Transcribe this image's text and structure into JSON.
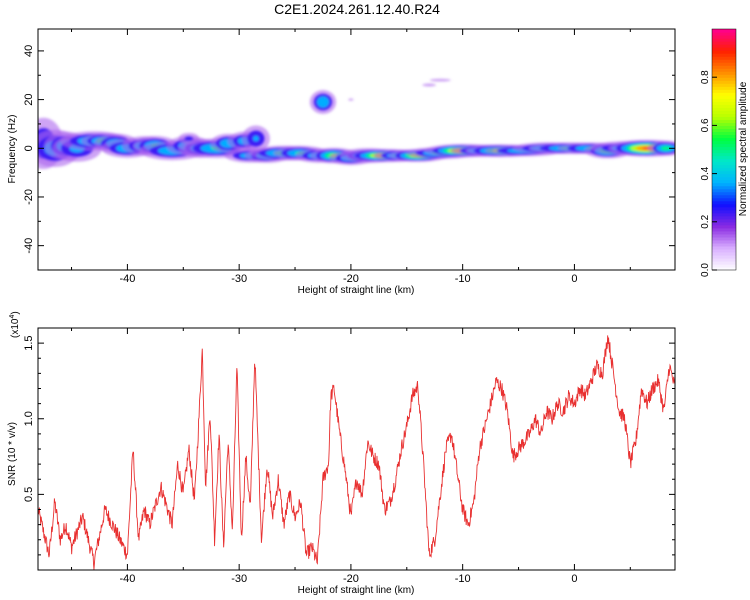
{
  "figure": {
    "title": "C2E1.2024.261.12.40.R24"
  },
  "chart_data": [
    {
      "type": "heatmap",
      "xlabel": "Height of straight line (km)",
      "ylabel": "Frequency (Hz)",
      "xlim": [
        -48,
        9
      ],
      "ylim": [
        -50,
        49
      ],
      "x_ticks": [
        -40,
        -30,
        -20,
        -10,
        0
      ],
      "y_ticks": [
        -40,
        -20,
        0,
        20,
        40
      ],
      "colorbar": {
        "label": "Normalized spectral amplitude",
        "range": [
          0.0,
          1.0
        ],
        "ticks": [
          "0.0",
          "0.2",
          "0.4",
          "0.6",
          "0.8"
        ],
        "colors": [
          "#ffffff",
          "#d9b0ff",
          "#8a2be2",
          "#1010ff",
          "#00b4ff",
          "#00e8c8",
          "#00ff40",
          "#b8ff00",
          "#ffff00",
          "#ff9000",
          "#ff2000",
          "#ff0090"
        ]
      },
      "blobs": [
        [
          -47.5,
          2,
          1.0,
          6,
          0.28
        ],
        [
          -46.5,
          0,
          1.2,
          4,
          0.38
        ],
        [
          -45.5,
          1,
          1.0,
          3,
          0.4
        ],
        [
          -44.5,
          0,
          1.2,
          3,
          0.33
        ],
        [
          -43,
          3,
          1.5,
          2,
          0.45
        ],
        [
          -42,
          3,
          1.0,
          1.5,
          0.58
        ],
        [
          -41,
          2,
          1.0,
          2,
          0.42
        ],
        [
          -40,
          0,
          1.2,
          2,
          0.4
        ],
        [
          -38.5,
          1,
          1.0,
          2,
          0.42
        ],
        [
          -37.5,
          1,
          1.0,
          2,
          0.46
        ],
        [
          -36,
          -1,
          1.5,
          2,
          0.4
        ],
        [
          -34.5,
          1,
          1.0,
          2,
          0.44
        ],
        [
          -33.5,
          0,
          1.0,
          2,
          0.4
        ],
        [
          -32,
          0,
          1.5,
          2,
          0.45
        ],
        [
          -31,
          2,
          0.8,
          2,
          0.42
        ],
        [
          -29.5,
          3,
          0.8,
          2,
          0.38
        ],
        [
          -28.5,
          4,
          0.7,
          3,
          0.3
        ],
        [
          -29,
          -3,
          1.2,
          1.5,
          0.38
        ],
        [
          -27.5,
          -3,
          1.0,
          1.5,
          0.45
        ],
        [
          -26,
          -2,
          1.5,
          1.5,
          0.5
        ],
        [
          -24.5,
          -2,
          1.2,
          1.5,
          0.46
        ],
        [
          -23,
          -3,
          1.0,
          1.5,
          0.4
        ],
        [
          -21.5,
          -3,
          1.0,
          1.5,
          0.6
        ],
        [
          -20,
          -4,
          1.0,
          1.5,
          0.42
        ],
        [
          -18.5,
          -3,
          1.2,
          1.5,
          0.5
        ],
        [
          -17,
          -3,
          1.5,
          1.2,
          0.8
        ],
        [
          -15.5,
          -3,
          1.2,
          1.2,
          0.5
        ],
        [
          -14,
          -3,
          1.2,
          1.2,
          0.68
        ],
        [
          -12,
          -2,
          1.5,
          1.2,
          0.48
        ],
        [
          -10,
          -1,
          1.5,
          1.2,
          0.82
        ],
        [
          -8,
          -1,
          1.5,
          1.2,
          0.5
        ],
        [
          -6.5,
          -1,
          1.5,
          1.2,
          0.66
        ],
        [
          -4.5,
          -1,
          1.8,
          1.2,
          0.4
        ],
        [
          -2.5,
          0,
          1.5,
          1.2,
          0.46
        ],
        [
          -0.5,
          0,
          1.8,
          1.2,
          0.46
        ],
        [
          1.5,
          0,
          1.5,
          1.2,
          0.44
        ],
        [
          3,
          -1,
          1.0,
          1.5,
          0.56
        ],
        [
          5,
          0,
          1.8,
          1.5,
          0.44
        ],
        [
          6.5,
          0,
          1.5,
          1.5,
          0.9
        ],
        [
          8.2,
          0,
          0.8,
          1.5,
          0.5
        ],
        [
          -22.5,
          19,
          0.6,
          2.5,
          0.42
        ],
        [
          -12,
          28,
          0.8,
          0.5,
          0.12
        ],
        [
          -13,
          26,
          0.6,
          0.6,
          0.1
        ],
        [
          -20,
          20,
          0.3,
          0.6,
          0.08
        ],
        [
          -34.5,
          4,
          0.6,
          1.5,
          0.2
        ]
      ]
    },
    {
      "type": "line",
      "xlabel": "Height of straight line (km)",
      "ylabel": "SNR (10 * v/v)",
      "yscale_label": "(x10",
      "yscale_exp": "4",
      "yscale_suffix": ")",
      "xlim": [
        -48,
        9
      ],
      "ylim": [
        0.0,
        1.6
      ],
      "x_ticks": [
        -40,
        -30,
        -20,
        -10,
        0
      ],
      "y_ticks": [
        "0.5",
        "1.0",
        "1.5"
      ],
      "y_tick_values": [
        0.5,
        1.0,
        1.5
      ],
      "color": "#e83030",
      "x": [
        -48,
        -47,
        -46.5,
        -46,
        -45.5,
        -45,
        -44,
        -43,
        -42,
        -41,
        -40,
        -39.5,
        -39,
        -38.5,
        -38,
        -37,
        -36,
        -35.5,
        -35,
        -34.5,
        -34,
        -33.6,
        -33.3,
        -33,
        -32.6,
        -32.2,
        -31.8,
        -31.4,
        -31,
        -30.6,
        -30.2,
        -29.8,
        -29.4,
        -29,
        -28.6,
        -28.3,
        -28,
        -27.5,
        -27,
        -26.5,
        -26,
        -25.5,
        -25,
        -24.5,
        -24,
        -23.5,
        -23,
        -22.5,
        -22,
        -21.8,
        -21.5,
        -21,
        -20.5,
        -20,
        -19.5,
        -19,
        -18.5,
        -18,
        -17.5,
        -17,
        -16.5,
        -16,
        -15.5,
        -15,
        -14.5,
        -14,
        -13.5,
        -13,
        -12.5,
        -12,
        -11.5,
        -11,
        -10.5,
        -10,
        -9.5,
        -9,
        -8.5,
        -8,
        -7.5,
        -7,
        -6.5,
        -6,
        -5.5,
        -5,
        -4.5,
        -4,
        -3.5,
        -3,
        -2.5,
        -2,
        -1.5,
        -1,
        -0.5,
        0,
        0.5,
        1,
        1.5,
        2,
        2.5,
        3,
        3.5,
        4,
        4.5,
        5,
        5.5,
        6,
        6.5,
        7,
        7.5,
        8,
        8.5,
        9
      ],
      "values": [
        0.4,
        0.1,
        0.45,
        0.2,
        0.3,
        0.15,
        0.35,
        0.05,
        0.4,
        0.25,
        0.1,
        0.8,
        0.2,
        0.4,
        0.3,
        0.55,
        0.3,
        0.7,
        0.5,
        0.8,
        0.45,
        1.0,
        1.46,
        0.55,
        1.05,
        0.2,
        0.9,
        0.15,
        0.85,
        0.25,
        1.35,
        0.2,
        0.75,
        0.4,
        1.42,
        0.8,
        0.2,
        0.7,
        0.35,
        0.6,
        0.3,
        0.5,
        0.35,
        0.45,
        0.1,
        0.15,
        0.05,
        0.6,
        0.7,
        1.15,
        1.2,
        0.9,
        0.65,
        0.35,
        0.6,
        0.5,
        0.85,
        0.75,
        0.7,
        0.4,
        0.45,
        0.6,
        0.8,
        0.95,
        1.15,
        1.22,
        0.7,
        0.1,
        0.2,
        0.5,
        0.8,
        0.9,
        0.65,
        0.4,
        0.3,
        0.45,
        0.8,
        0.95,
        1.1,
        1.25,
        1.2,
        1.05,
        0.75,
        0.8,
        0.85,
        0.9,
        1.0,
        0.9,
        1.05,
        1.0,
        1.1,
        1.05,
        1.15,
        1.1,
        1.2,
        1.15,
        1.25,
        1.35,
        1.3,
        1.55,
        1.3,
        1.05,
        1.0,
        0.7,
        0.85,
        1.2,
        1.1,
        1.2,
        1.25,
        1.05,
        1.35,
        1.2
      ],
      "noise": 0.05
    }
  ]
}
